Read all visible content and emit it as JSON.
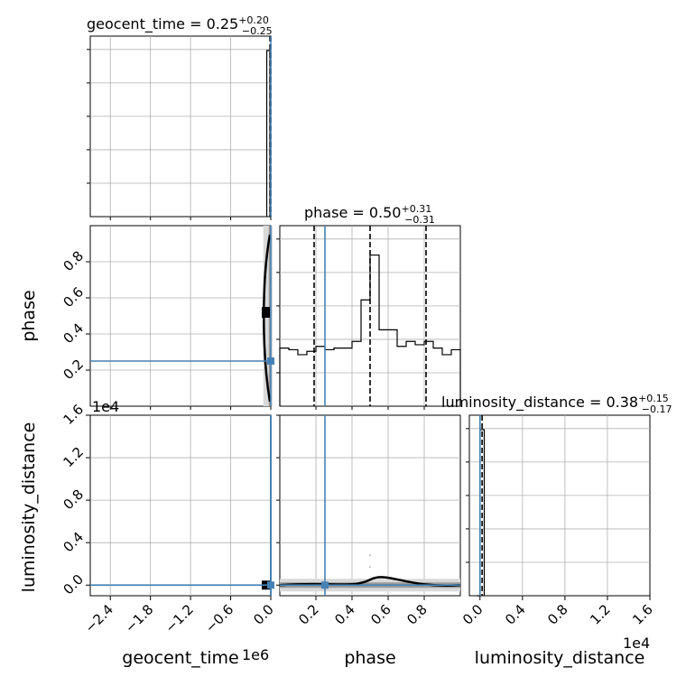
{
  "chart_data": {
    "type": "corner",
    "truth_color": "#4682b4",
    "line_color": "#000000",
    "grid": true,
    "parameters": [
      {
        "key": "geocent_time",
        "label": "geocent_time",
        "title": {
          "base": "geocent_time = 0.25",
          "sup": "+0.20",
          "sub": "−0.25"
        },
        "range": [
          -2.7,
          0.0
        ],
        "ticks": [
          -2.4,
          -1.8,
          -1.2,
          -0.6,
          0.0
        ],
        "tick_labels": [
          "−2.4",
          "−1.8",
          "−1.2",
          "−0.6",
          "0.0"
        ],
        "offset_text": "1e6",
        "truth": 0.0,
        "quantiles": [
          -0.012,
          0.0
        ]
      },
      {
        "key": "phase",
        "label": "phase",
        "title": {
          "base": "phase = 0.50",
          "sup": "+0.31",
          "sub": "−0.31"
        },
        "range": [
          0.0,
          1.0
        ],
        "ticks": [
          0.2,
          0.4,
          0.6,
          0.8
        ],
        "tick_labels": [
          "0.2",
          "0.4",
          "0.6",
          "0.8"
        ],
        "truth": 0.25,
        "quantiles": [
          0.19,
          0.5,
          0.81
        ]
      },
      {
        "key": "luminosity_distance",
        "label": "luminosity_distance",
        "title": {
          "base": "luminosity_distance = 0.38",
          "sup": "+0.15",
          "sub": "−0.17"
        },
        "range": [
          -0.1,
          1.6
        ],
        "ticks": [
          0.0,
          0.4,
          0.8,
          1.2,
          1.6
        ],
        "tick_labels": [
          "0.0",
          "0.4",
          "0.8",
          "1.2",
          "1.6"
        ],
        "offset_text": "1e4",
        "truth": 0.0,
        "quantiles": [
          0.0,
          0.02
        ]
      }
    ],
    "histograms": {
      "geocent_time": {
        "edges": [
          -0.06,
          -0.012,
          0.0
        ],
        "values": [
          1.0,
          0.0
        ],
        "ymax": 1.0
      },
      "phase": {
        "edges": [
          0.0,
          0.05,
          0.1,
          0.15,
          0.2,
          0.25,
          0.3,
          0.35,
          0.4,
          0.45,
          0.5,
          0.55,
          0.6,
          0.65,
          0.7,
          0.75,
          0.8,
          0.85,
          0.9,
          0.95,
          1.0
        ],
        "values": [
          0.35,
          0.34,
          0.31,
          0.33,
          0.36,
          0.34,
          0.35,
          0.35,
          0.39,
          0.64,
          0.91,
          0.46,
          0.46,
          0.36,
          0.39,
          0.37,
          0.39,
          0.35,
          0.31,
          0.34
        ],
        "ymax": 1.0
      },
      "luminosity_distance": {
        "edges": [
          -0.03,
          0.0,
          0.04
        ],
        "values": [
          0.0,
          1.0
        ],
        "ymax": 1.0
      }
    },
    "pairs": [
      {
        "x": "geocent_time",
        "y": "phase",
        "median": [
          0.0,
          0.52
        ]
      },
      {
        "x": "geocent_time",
        "y": "luminosity_distance",
        "median": [
          0.0,
          0.0
        ]
      },
      {
        "x": "phase",
        "y": "luminosity_distance",
        "median": [
          0.5,
          0.0
        ]
      }
    ]
  }
}
